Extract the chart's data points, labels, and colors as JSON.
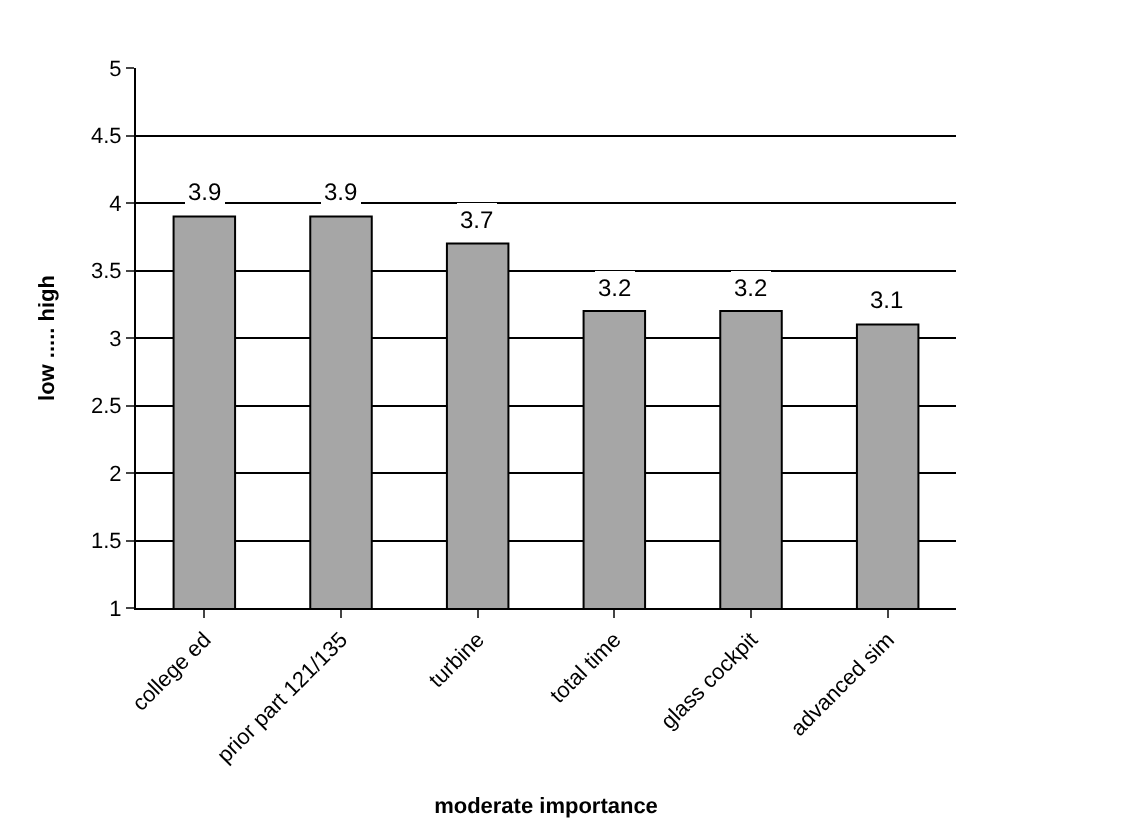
{
  "chart_data": {
    "type": "bar",
    "xlabel": "moderate importance",
    "ylabel": "low ..... high",
    "categories": [
      "college ed",
      "prior part 121/135",
      "turbine",
      "total time",
      "glass cockpit",
      "advanced sim"
    ],
    "values": [
      3.9,
      3.9,
      3.7,
      3.2,
      3.2,
      3.1
    ],
    "color": "#a6a6a6",
    "ylim": [
      1,
      5
    ],
    "yticks": [
      1,
      1.5,
      2,
      2.5,
      3,
      3.5,
      4,
      4.5,
      5
    ],
    "grid": "y",
    "data_labels": true,
    "legend": false
  }
}
